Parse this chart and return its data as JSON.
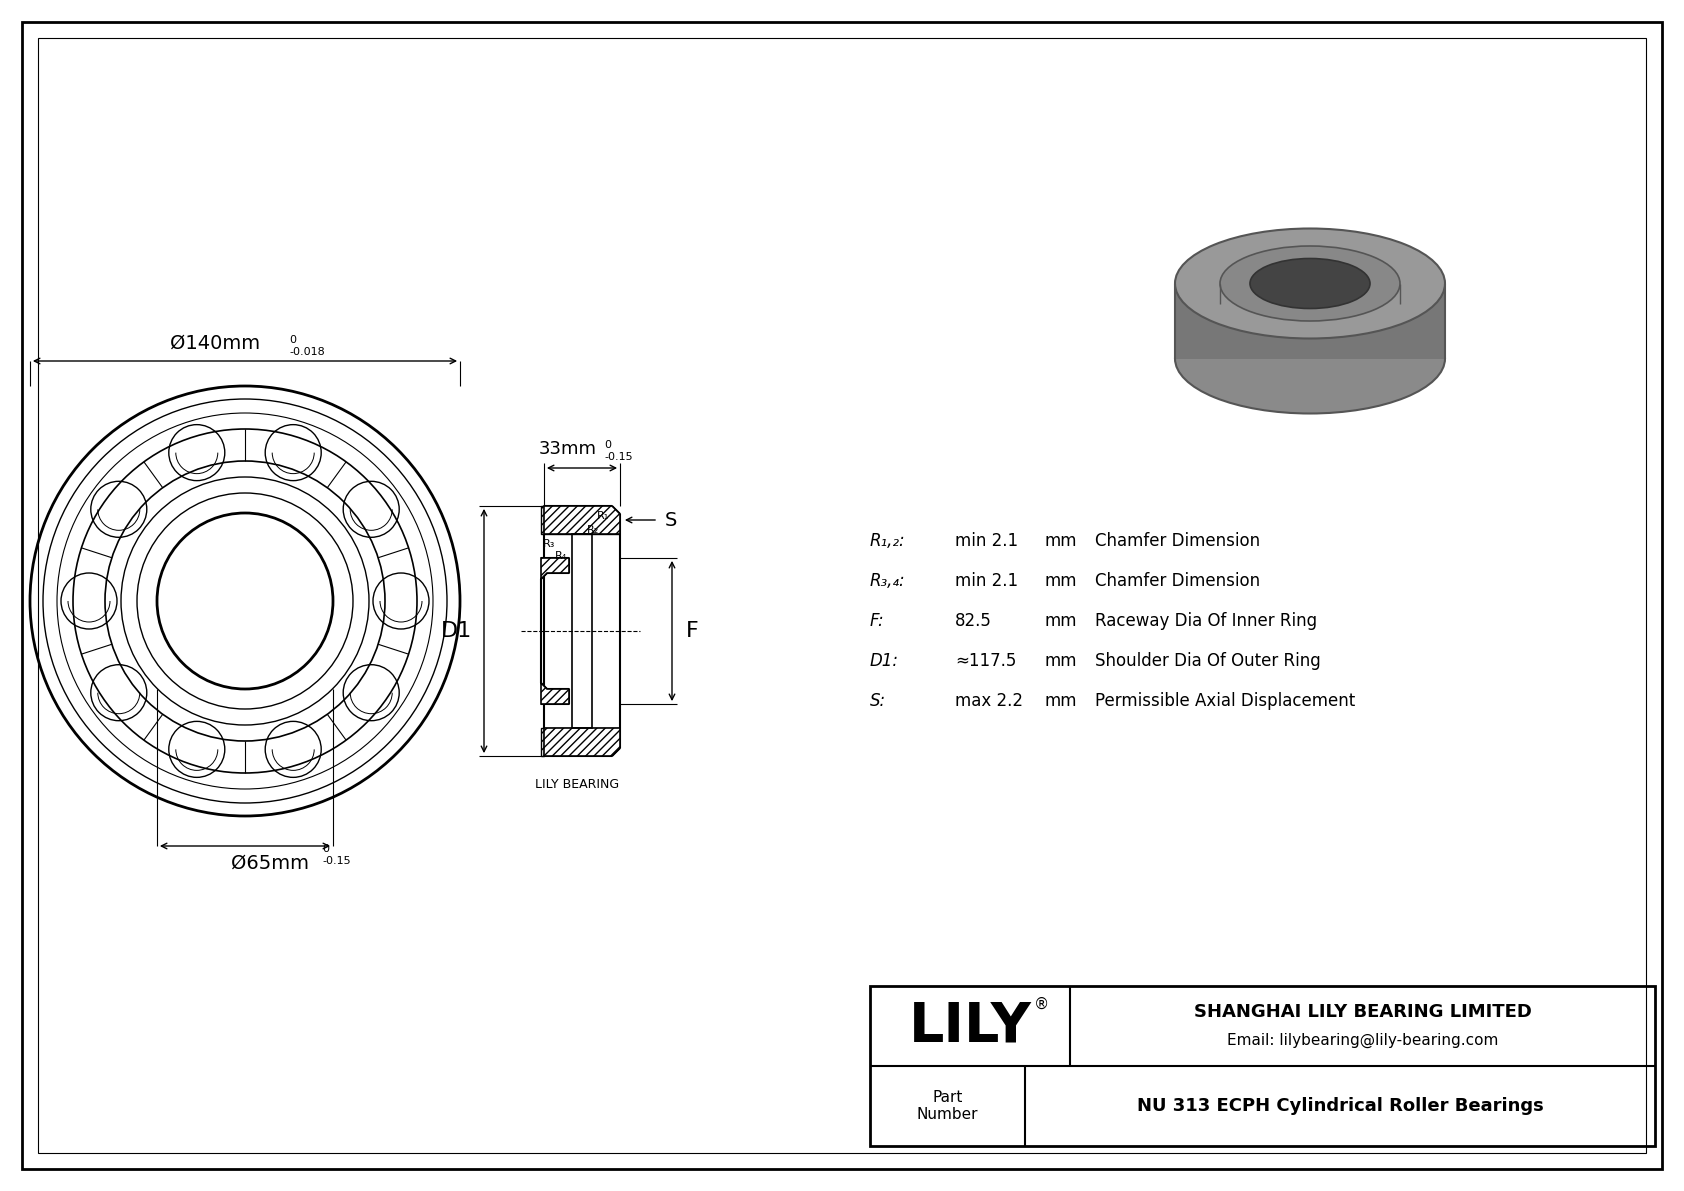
{
  "bg_color": "#ffffff",
  "line_color": "#000000",
  "company_name": "SHANGHAI LILY BEARING LIMITED",
  "email": "Email: lilybearing@lily-bearing.com",
  "part_label": "Part\nNumber",
  "part_number": "NU 313 ECPH Cylindrical Roller Bearings",
  "lily_text": "LILY",
  "dim_label_outer": "Ø140mm",
  "dim_sup_outer": "0",
  "dim_sub_outer": "-0.018",
  "dim_label_inner": "Ø65mm",
  "dim_sup_inner": "0",
  "dim_sub_inner": "-0.15",
  "dim_label_width": "33mm",
  "dim_sup_width": "0",
  "dim_sub_width": "-0.15",
  "specs": [
    [
      "R₁,₂:",
      "min 2.1",
      "mm",
      "Chamfer Dimension"
    ],
    [
      "R₃,₄:",
      "min 2.1",
      "mm",
      "Chamfer Dimension"
    ],
    [
      "F:",
      "82.5",
      "mm",
      "Raceway Dia Of Inner Ring"
    ],
    [
      "D1:",
      "≈117.5",
      "mm",
      "Shoulder Dia Of Outer Ring"
    ],
    [
      "S:",
      "max 2.2",
      "mm",
      "Permissible Axial Displacement"
    ]
  ],
  "label_D1": "D1",
  "label_F": "F",
  "label_S": "S",
  "label_R1": "R₁",
  "label_R2": "R₂",
  "label_R3": "R₃",
  "label_R4": "R₄",
  "lily_bearing_text": "LILY BEARING"
}
